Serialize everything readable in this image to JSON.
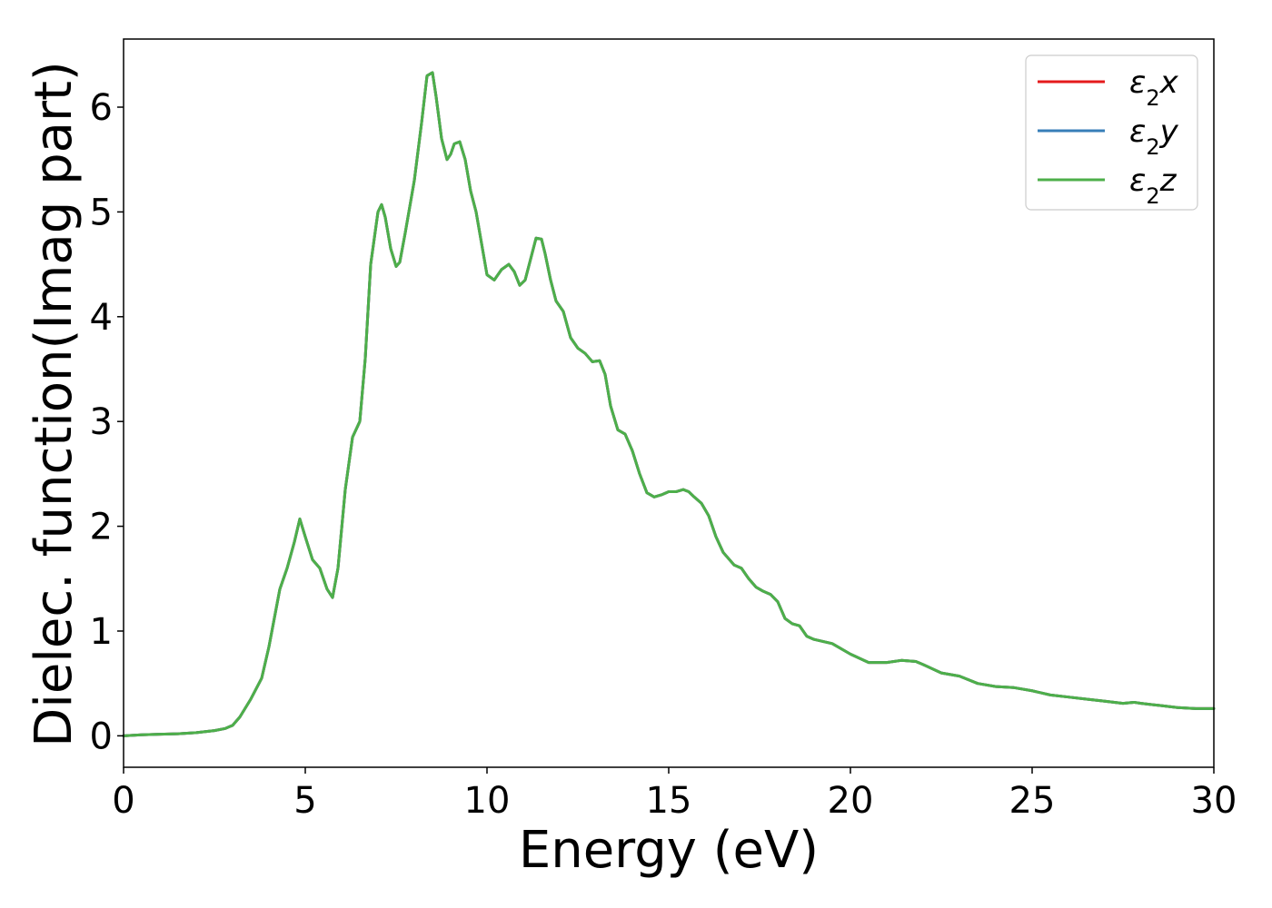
{
  "chart_data": {
    "type": "line",
    "xlabel": "Energy (eV)",
    "ylabel": "Dielec. function(Imag part)",
    "xlim": [
      0,
      30
    ],
    "ylim": [
      -0.3,
      6.65
    ],
    "xticks": [
      0,
      5,
      10,
      15,
      20,
      25,
      30
    ],
    "yticks": [
      0,
      1,
      2,
      3,
      4,
      5,
      6
    ],
    "grid": false,
    "legend": "top-right",
    "series": [
      {
        "name": "ε2x",
        "name_base": "ε",
        "name_sub": "2",
        "name_tail": "x",
        "color": "#e41a1c",
        "x": [
          0,
          0.5,
          1,
          1.5,
          2,
          2.5,
          2.8,
          3.0,
          3.2,
          3.5,
          3.8,
          4.0,
          4.3,
          4.5,
          4.7,
          4.85,
          5.0,
          5.2,
          5.4,
          5.6,
          5.75,
          5.9,
          6.1,
          6.3,
          6.5,
          6.65,
          6.8,
          7.0,
          7.1,
          7.2,
          7.35,
          7.5,
          7.6,
          7.75,
          7.9,
          8.0,
          8.2,
          8.35,
          8.5,
          8.6,
          8.75,
          8.9,
          9.0,
          9.1,
          9.25,
          9.4,
          9.55,
          9.7,
          9.85,
          10.0,
          10.2,
          10.4,
          10.6,
          10.75,
          10.9,
          11.05,
          11.2,
          11.35,
          11.5,
          11.6,
          11.75,
          11.9,
          12.1,
          12.3,
          12.5,
          12.7,
          12.9,
          13.1,
          13.25,
          13.4,
          13.6,
          13.8,
          14.0,
          14.2,
          14.4,
          14.6,
          14.8,
          15.0,
          15.2,
          15.4,
          15.55,
          15.7,
          15.9,
          16.1,
          16.3,
          16.5,
          16.8,
          17.0,
          17.2,
          17.4,
          17.6,
          17.8,
          18.0,
          18.2,
          18.4,
          18.6,
          18.8,
          19.0,
          19.5,
          20.0,
          20.5,
          21.0,
          21.4,
          21.8,
          22.0,
          22.5,
          23.0,
          23.5,
          24.0,
          24.5,
          25.0,
          25.5,
          26.0,
          26.5,
          27.0,
          27.5,
          27.8,
          28.0,
          28.5,
          29.0,
          29.5,
          30.0
        ],
        "y": [
          0.0,
          0.01,
          0.015,
          0.02,
          0.03,
          0.05,
          0.07,
          0.1,
          0.18,
          0.35,
          0.55,
          0.85,
          1.4,
          1.6,
          1.85,
          2.07,
          1.9,
          1.68,
          1.6,
          1.4,
          1.32,
          1.6,
          2.35,
          2.85,
          3.0,
          3.6,
          4.5,
          5.0,
          5.07,
          4.95,
          4.65,
          4.48,
          4.52,
          4.8,
          5.1,
          5.3,
          5.85,
          6.3,
          6.33,
          6.1,
          5.7,
          5.5,
          5.55,
          5.65,
          5.67,
          5.5,
          5.2,
          5.0,
          4.7,
          4.4,
          4.35,
          4.45,
          4.5,
          4.43,
          4.3,
          4.35,
          4.55,
          4.75,
          4.74,
          4.6,
          4.35,
          4.15,
          4.05,
          3.8,
          3.7,
          3.65,
          3.57,
          3.58,
          3.45,
          3.15,
          2.92,
          2.88,
          2.72,
          2.5,
          2.32,
          2.28,
          2.3,
          2.33,
          2.33,
          2.35,
          2.33,
          2.28,
          2.22,
          2.1,
          1.9,
          1.75,
          1.63,
          1.6,
          1.5,
          1.42,
          1.38,
          1.35,
          1.28,
          1.12,
          1.07,
          1.05,
          0.95,
          0.92,
          0.88,
          0.78,
          0.7,
          0.7,
          0.72,
          0.71,
          0.68,
          0.6,
          0.57,
          0.5,
          0.47,
          0.46,
          0.43,
          0.39,
          0.37,
          0.35,
          0.33,
          0.31,
          0.32,
          0.31,
          0.29,
          0.27,
          0.26,
          0.26
        ]
      },
      {
        "name": "ε2y",
        "name_base": "ε",
        "name_sub": "2",
        "name_tail": "y",
        "color": "#377eb8",
        "x": [
          0,
          0.5,
          1,
          1.5,
          2,
          2.5,
          2.8,
          3.0,
          3.2,
          3.5,
          3.8,
          4.0,
          4.3,
          4.5,
          4.7,
          4.85,
          5.0,
          5.2,
          5.4,
          5.6,
          5.75,
          5.9,
          6.1,
          6.3,
          6.5,
          6.65,
          6.8,
          7.0,
          7.1,
          7.2,
          7.35,
          7.5,
          7.6,
          7.75,
          7.9,
          8.0,
          8.2,
          8.35,
          8.5,
          8.6,
          8.75,
          8.9,
          9.0,
          9.1,
          9.25,
          9.4,
          9.55,
          9.7,
          9.85,
          10.0,
          10.2,
          10.4,
          10.6,
          10.75,
          10.9,
          11.05,
          11.2,
          11.35,
          11.5,
          11.6,
          11.75,
          11.9,
          12.1,
          12.3,
          12.5,
          12.7,
          12.9,
          13.1,
          13.25,
          13.4,
          13.6,
          13.8,
          14.0,
          14.2,
          14.4,
          14.6,
          14.8,
          15.0,
          15.2,
          15.4,
          15.55,
          15.7,
          15.9,
          16.1,
          16.3,
          16.5,
          16.8,
          17.0,
          17.2,
          17.4,
          17.6,
          17.8,
          18.0,
          18.2,
          18.4,
          18.6,
          18.8,
          19.0,
          19.5,
          20.0,
          20.5,
          21.0,
          21.4,
          21.8,
          22.0,
          22.5,
          23.0,
          23.5,
          24.0,
          24.5,
          25.0,
          25.5,
          26.0,
          26.5,
          27.0,
          27.5,
          27.8,
          28.0,
          28.5,
          29.0,
          29.5,
          30.0
        ],
        "y": [
          0.0,
          0.01,
          0.015,
          0.02,
          0.03,
          0.05,
          0.07,
          0.1,
          0.18,
          0.35,
          0.55,
          0.85,
          1.4,
          1.6,
          1.85,
          2.07,
          1.9,
          1.68,
          1.6,
          1.4,
          1.32,
          1.6,
          2.35,
          2.85,
          3.0,
          3.6,
          4.5,
          5.0,
          5.07,
          4.95,
          4.65,
          4.48,
          4.52,
          4.8,
          5.1,
          5.3,
          5.85,
          6.3,
          6.33,
          6.1,
          5.7,
          5.5,
          5.55,
          5.65,
          5.67,
          5.5,
          5.2,
          5.0,
          4.7,
          4.4,
          4.35,
          4.45,
          4.5,
          4.43,
          4.3,
          4.35,
          4.55,
          4.75,
          4.74,
          4.6,
          4.35,
          4.15,
          4.05,
          3.8,
          3.7,
          3.65,
          3.57,
          3.58,
          3.45,
          3.15,
          2.92,
          2.88,
          2.72,
          2.5,
          2.32,
          2.28,
          2.3,
          2.33,
          2.33,
          2.35,
          2.33,
          2.28,
          2.22,
          2.1,
          1.9,
          1.75,
          1.63,
          1.6,
          1.5,
          1.42,
          1.38,
          1.35,
          1.28,
          1.12,
          1.07,
          1.05,
          0.95,
          0.92,
          0.88,
          0.78,
          0.7,
          0.7,
          0.72,
          0.71,
          0.68,
          0.6,
          0.57,
          0.5,
          0.47,
          0.46,
          0.43,
          0.39,
          0.37,
          0.35,
          0.33,
          0.31,
          0.32,
          0.31,
          0.29,
          0.27,
          0.26,
          0.26
        ]
      },
      {
        "name": "ε2z",
        "name_base": "ε",
        "name_sub": "2",
        "name_tail": "z",
        "color": "#4daf4a",
        "x": [
          0,
          0.5,
          1,
          1.5,
          2,
          2.5,
          2.8,
          3.0,
          3.2,
          3.5,
          3.8,
          4.0,
          4.3,
          4.5,
          4.7,
          4.85,
          5.0,
          5.2,
          5.4,
          5.6,
          5.75,
          5.9,
          6.1,
          6.3,
          6.5,
          6.65,
          6.8,
          7.0,
          7.1,
          7.2,
          7.35,
          7.5,
          7.6,
          7.75,
          7.9,
          8.0,
          8.2,
          8.35,
          8.5,
          8.6,
          8.75,
          8.9,
          9.0,
          9.1,
          9.25,
          9.4,
          9.55,
          9.7,
          9.85,
          10.0,
          10.2,
          10.4,
          10.6,
          10.75,
          10.9,
          11.05,
          11.2,
          11.35,
          11.5,
          11.6,
          11.75,
          11.9,
          12.1,
          12.3,
          12.5,
          12.7,
          12.9,
          13.1,
          13.25,
          13.4,
          13.6,
          13.8,
          14.0,
          14.2,
          14.4,
          14.6,
          14.8,
          15.0,
          15.2,
          15.4,
          15.55,
          15.7,
          15.9,
          16.1,
          16.3,
          16.5,
          16.8,
          17.0,
          17.2,
          17.4,
          17.6,
          17.8,
          18.0,
          18.2,
          18.4,
          18.6,
          18.8,
          19.0,
          19.5,
          20.0,
          20.5,
          21.0,
          21.4,
          21.8,
          22.0,
          22.5,
          23.0,
          23.5,
          24.0,
          24.5,
          25.0,
          25.5,
          26.0,
          26.5,
          27.0,
          27.5,
          27.8,
          28.0,
          28.5,
          29.0,
          29.5,
          30.0
        ],
        "y": [
          0.0,
          0.01,
          0.015,
          0.02,
          0.03,
          0.05,
          0.07,
          0.1,
          0.18,
          0.35,
          0.55,
          0.85,
          1.4,
          1.6,
          1.85,
          2.07,
          1.9,
          1.68,
          1.6,
          1.4,
          1.32,
          1.6,
          2.35,
          2.85,
          3.0,
          3.6,
          4.5,
          5.0,
          5.07,
          4.95,
          4.65,
          4.48,
          4.52,
          4.8,
          5.1,
          5.3,
          5.85,
          6.3,
          6.33,
          6.1,
          5.7,
          5.5,
          5.55,
          5.65,
          5.67,
          5.5,
          5.2,
          5.0,
          4.7,
          4.4,
          4.35,
          4.45,
          4.5,
          4.43,
          4.3,
          4.35,
          4.55,
          4.75,
          4.74,
          4.6,
          4.35,
          4.15,
          4.05,
          3.8,
          3.7,
          3.65,
          3.57,
          3.58,
          3.45,
          3.15,
          2.92,
          2.88,
          2.72,
          2.5,
          2.32,
          2.28,
          2.3,
          2.33,
          2.33,
          2.35,
          2.33,
          2.28,
          2.22,
          2.1,
          1.9,
          1.75,
          1.63,
          1.6,
          1.5,
          1.42,
          1.38,
          1.35,
          1.28,
          1.12,
          1.07,
          1.05,
          0.95,
          0.92,
          0.88,
          0.78,
          0.7,
          0.7,
          0.72,
          0.71,
          0.68,
          0.6,
          0.57,
          0.5,
          0.47,
          0.46,
          0.43,
          0.39,
          0.37,
          0.35,
          0.33,
          0.31,
          0.32,
          0.31,
          0.29,
          0.27,
          0.26,
          0.26
        ]
      }
    ]
  }
}
